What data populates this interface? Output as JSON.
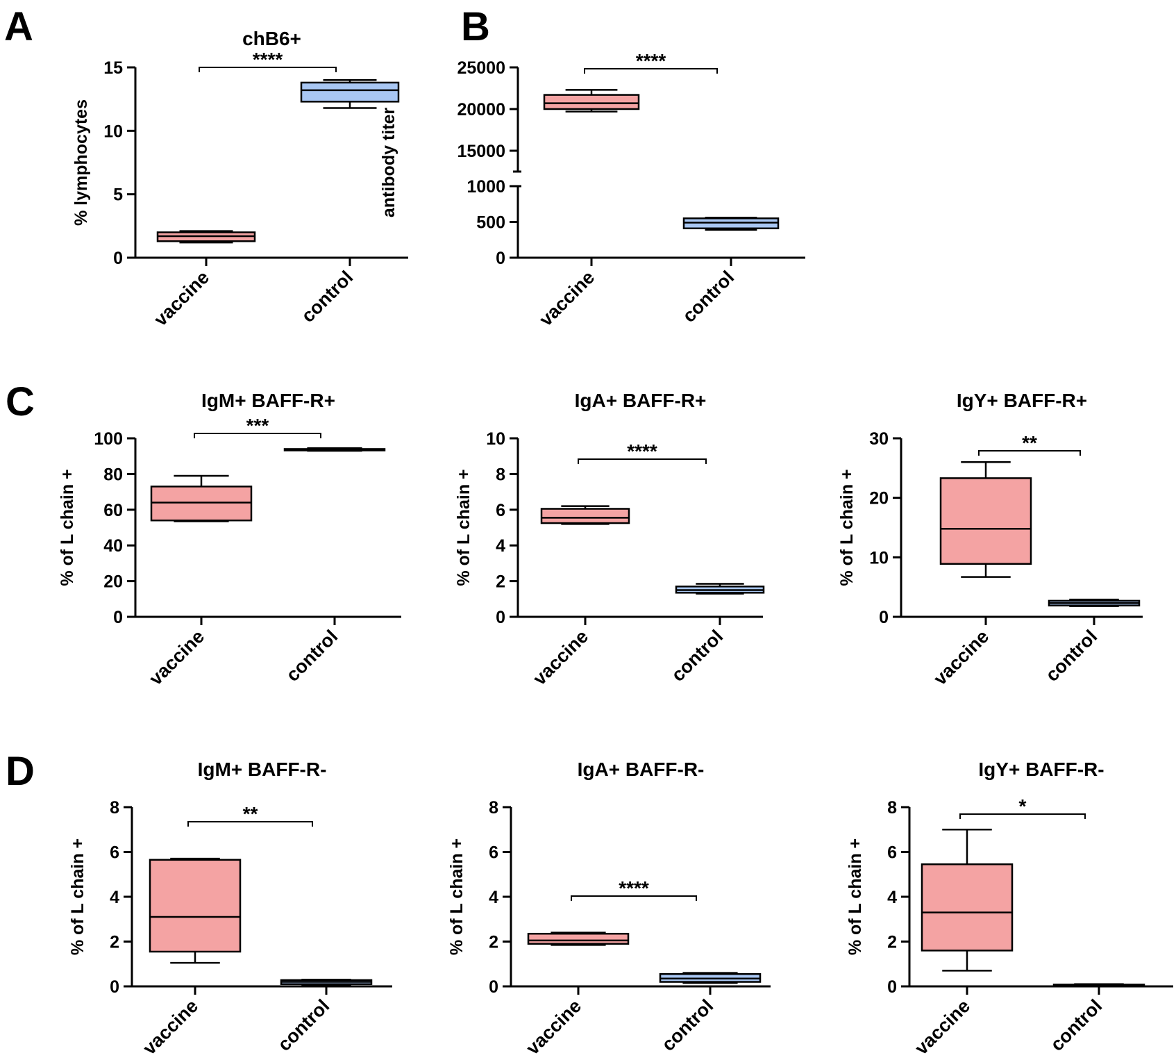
{
  "figure": {
    "panel_letters": [
      "A",
      "B",
      "C",
      "D"
    ],
    "colors": {
      "vaccine_fill": "#f4a3a3",
      "control_fill": "#a9c7f3",
      "stroke": "#000000"
    }
  },
  "chart_data": [
    {
      "panel": "A",
      "type": "box",
      "title": "chB6+",
      "ylabel": "% lymphocytes",
      "categories": [
        "vaccine",
        "control"
      ],
      "yticks": [
        0,
        5,
        10,
        15
      ],
      "ylim": [
        0,
        15
      ],
      "boxes": [
        {
          "group": "vaccine",
          "min": 1.2,
          "q1": 1.3,
          "median": 1.7,
          "q3": 2.0,
          "max": 2.1
        },
        {
          "group": "control",
          "min": 11.8,
          "q1": 12.3,
          "median": 13.2,
          "q3": 13.8,
          "max": 14.0
        }
      ],
      "significance": "****"
    },
    {
      "panel": "B",
      "type": "box",
      "title": "",
      "ylabel": "antibody titer",
      "categories": [
        "vaccine",
        "control"
      ],
      "yticks": [
        0,
        500,
        1000,
        15000,
        20000,
        25000
      ],
      "ylim": [
        0,
        25000
      ],
      "axis_break": [
        1000,
        12500
      ],
      "boxes": [
        {
          "group": "vaccine",
          "min": 19700,
          "q1": 20000,
          "median": 20700,
          "q3": 21700,
          "max": 22300
        },
        {
          "group": "control",
          "min": 390,
          "q1": 410,
          "median": 490,
          "q3": 550,
          "max": 560
        }
      ],
      "significance": "****"
    },
    {
      "panel": "C",
      "type": "box",
      "title": "IgM+ BAFF-R+",
      "ylabel": "% of L chain +",
      "categories": [
        "vaccine",
        "control"
      ],
      "yticks": [
        0,
        20,
        40,
        60,
        80,
        100
      ],
      "ylim": [
        0,
        100
      ],
      "boxes": [
        {
          "group": "vaccine",
          "min": 53.5,
          "q1": 54,
          "median": 64,
          "q3": 73,
          "max": 79
        },
        {
          "group": "control",
          "min": 93,
          "q1": 93.3,
          "median": 93.7,
          "q3": 94,
          "max": 94.5
        }
      ],
      "significance": "***"
    },
    {
      "panel": "C",
      "type": "box",
      "title": "IgA+ BAFF-R+",
      "ylabel": "% of L chain +",
      "categories": [
        "vaccine",
        "control"
      ],
      "yticks": [
        0,
        2,
        4,
        6,
        8,
        10
      ],
      "ylim": [
        0,
        10
      ],
      "boxes": [
        {
          "group": "vaccine",
          "min": 5.2,
          "q1": 5.25,
          "median": 5.55,
          "q3": 6.05,
          "max": 6.2
        },
        {
          "group": "control",
          "min": 1.3,
          "q1": 1.35,
          "median": 1.5,
          "q3": 1.7,
          "max": 1.85
        }
      ],
      "significance": "****"
    },
    {
      "panel": "C",
      "type": "box",
      "title": "IgY+ BAFF-R+",
      "ylabel": "% of L chain +",
      "categories": [
        "vaccine",
        "control"
      ],
      "yticks": [
        0,
        10,
        20,
        30
      ],
      "ylim": [
        0,
        30
      ],
      "boxes": [
        {
          "group": "vaccine",
          "min": 6.7,
          "q1": 8.9,
          "median": 14.8,
          "q3": 23.3,
          "max": 26
        },
        {
          "group": "control",
          "min": 1.8,
          "q1": 1.9,
          "median": 2.3,
          "q3": 2.7,
          "max": 2.9
        }
      ],
      "significance": "**"
    },
    {
      "panel": "D",
      "type": "box",
      "title": "IgM+ BAFF-R-",
      "ylabel": "% of L chain +",
      "categories": [
        "vaccine",
        "control"
      ],
      "yticks": [
        0,
        2,
        4,
        6,
        8
      ],
      "ylim": [
        0,
        8
      ],
      "boxes": [
        {
          "group": "vaccine",
          "min": 1.05,
          "q1": 1.55,
          "median": 3.1,
          "q3": 5.65,
          "max": 5.7
        },
        {
          "group": "control",
          "min": 0.05,
          "q1": 0.1,
          "median": 0.2,
          "q3": 0.28,
          "max": 0.3
        }
      ],
      "significance": "**"
    },
    {
      "panel": "D",
      "type": "box",
      "title": "IgA+ BAFF-R-",
      "ylabel": "% of L chain +",
      "categories": [
        "vaccine",
        "control"
      ],
      "yticks": [
        0,
        2,
        4,
        6,
        8
      ],
      "ylim": [
        0,
        8
      ],
      "boxes": [
        {
          "group": "vaccine",
          "min": 1.85,
          "q1": 1.9,
          "median": 2.05,
          "q3": 2.35,
          "max": 2.4
        },
        {
          "group": "control",
          "min": 0.15,
          "q1": 0.2,
          "median": 0.35,
          "q3": 0.55,
          "max": 0.6
        }
      ],
      "significance": "****"
    },
    {
      "panel": "D",
      "type": "box",
      "title": "IgY+ BAFF-R-",
      "ylabel": "% of L chain +",
      "categories": [
        "vaccine",
        "control"
      ],
      "yticks": [
        0,
        2,
        4,
        6,
        8
      ],
      "ylim": [
        0,
        8
      ],
      "boxes": [
        {
          "group": "vaccine",
          "min": 0.7,
          "q1": 1.6,
          "median": 3.3,
          "q3": 5.45,
          "max": 7.0
        },
        {
          "group": "control",
          "min": 0.02,
          "q1": 0.04,
          "median": 0.06,
          "q3": 0.08,
          "max": 0.1
        }
      ],
      "significance": "*"
    }
  ]
}
